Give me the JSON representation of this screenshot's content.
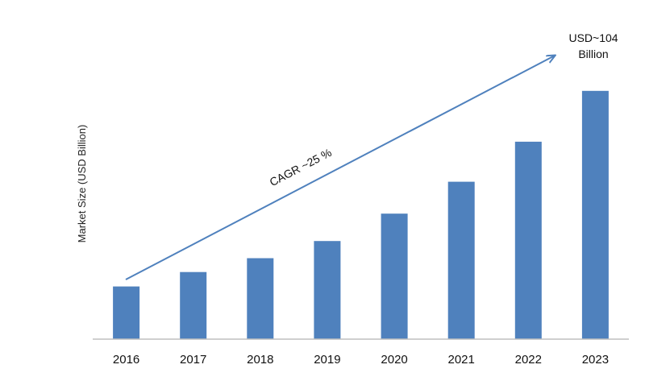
{
  "chart_data": {
    "type": "bar",
    "title": "",
    "xlabel": "",
    "ylabel": "Market Size (USD Billion)",
    "categories": [
      "2016",
      "2017",
      "2018",
      "2019",
      "2020",
      "2021",
      "2022",
      "2023"
    ],
    "values": [
      17.5,
      22.3,
      26.9,
      32.6,
      41.7,
      52.3,
      65.6,
      82.5
    ],
    "ylim": [
      0,
      110
    ],
    "grid": false,
    "legend": "none",
    "bar_color": "#4f81bd",
    "arrow_color": "#4f81bd",
    "annotations": {
      "cagr": "CAGR ~25 %",
      "end_value_line1": "USD~104",
      "end_value_line2": "Billion"
    }
  }
}
